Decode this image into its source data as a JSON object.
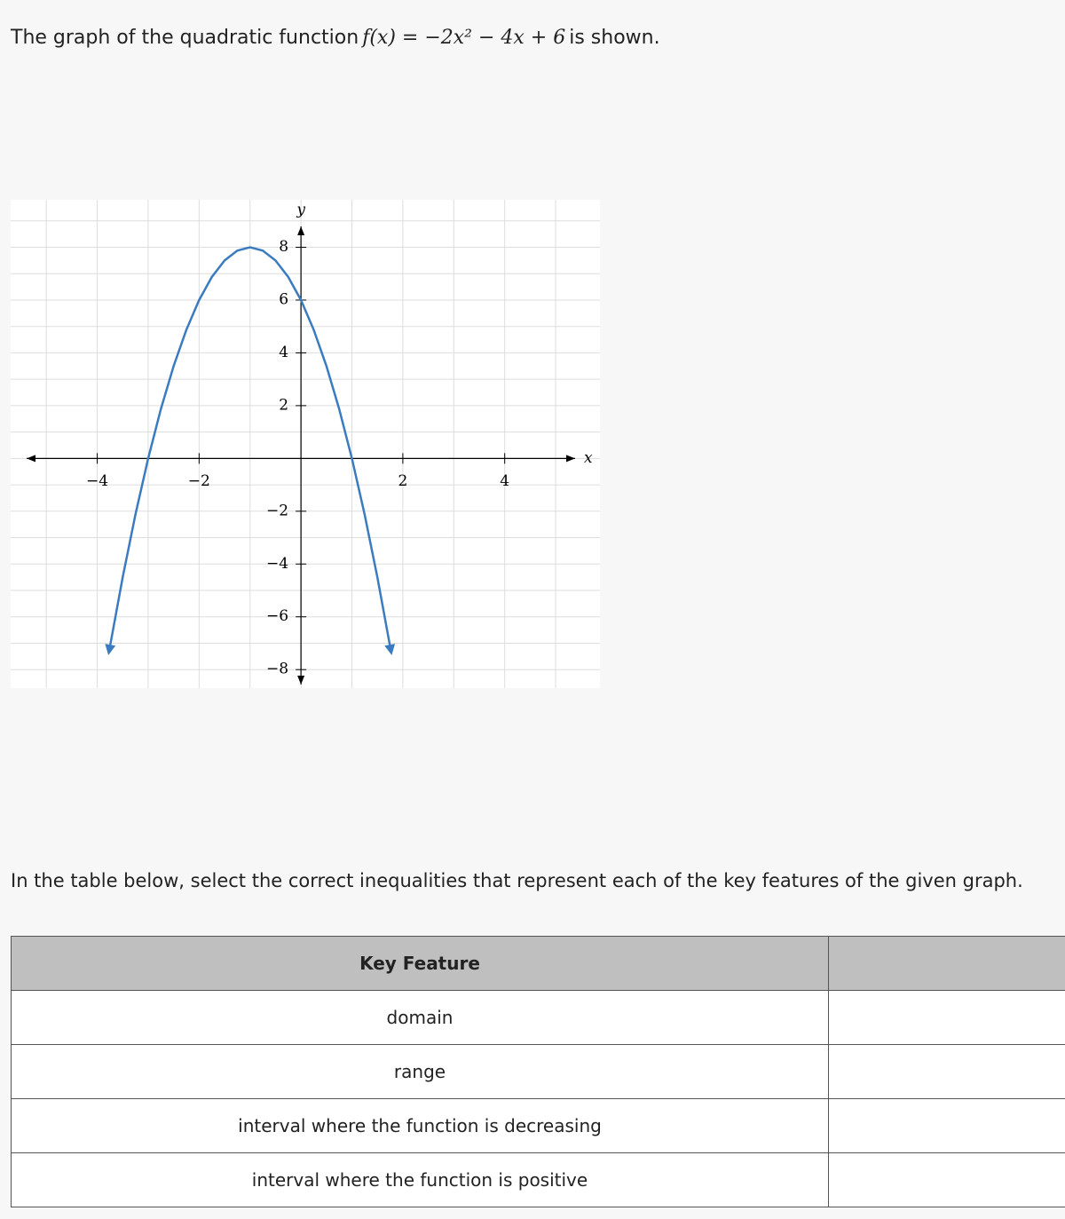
{
  "intro": {
    "before": "The graph of the quadratic function",
    "math": "f(x) = −2x² − 4x + 6",
    "after": "is shown."
  },
  "graph": {
    "type": "line",
    "x_label": "x",
    "y_label": "y",
    "xlim": [
      -5.7,
      5.87
    ],
    "ylim": [
      -8.7,
      9.8
    ],
    "xticks": [
      {
        "value": -4,
        "label": "−4"
      },
      {
        "value": -2,
        "label": "−2"
      },
      2,
      4
    ],
    "yticks": [
      {
        "value": -8,
        "label": "−8"
      },
      {
        "value": -6,
        "label": "−6"
      },
      {
        "value": -4,
        "label": "−4"
      },
      {
        "value": -2,
        "label": "−2"
      },
      2,
      4,
      6,
      8
    ],
    "xgrid": [
      -5,
      -4,
      -3,
      -2,
      -1,
      0,
      1,
      2,
      3,
      4,
      5
    ],
    "ygrid": [
      -8,
      -7,
      -6,
      -5,
      -4,
      -3,
      -2,
      -1,
      0,
      1,
      2,
      3,
      4,
      5,
      6,
      7,
      8,
      9
    ],
    "grid": true,
    "series": [
      {
        "color": "#3b7bbf",
        "x": [
          -3.75,
          -3.5,
          -3.25,
          -3,
          -2.75,
          -2.5,
          -2.25,
          -2,
          -1.75,
          -1.5,
          -1.25,
          -1,
          -0.75,
          -0.5,
          -0.25,
          0,
          0.25,
          0.5,
          0.75,
          1,
          1.25,
          1.5,
          1.75
        ],
        "values": [
          -7.125,
          -4.5,
          -2.125,
          0,
          1.875,
          3.5,
          4.875,
          6,
          6.875,
          7.5,
          7.875,
          8,
          7.875,
          7.5,
          6.875,
          6,
          4.875,
          3.5,
          1.875,
          0,
          -2.125,
          -4.5,
          -7.125
        ]
      }
    ]
  },
  "instruction": "In the table below, select the correct inequalities that represent each of the key features of the given graph.",
  "table": {
    "header": [
      "Key Feature"
    ],
    "rows": [
      [
        "domain"
      ],
      [
        "range"
      ],
      [
        "interval where the function is decreasing"
      ],
      [
        "interval where the function is positive"
      ]
    ]
  }
}
